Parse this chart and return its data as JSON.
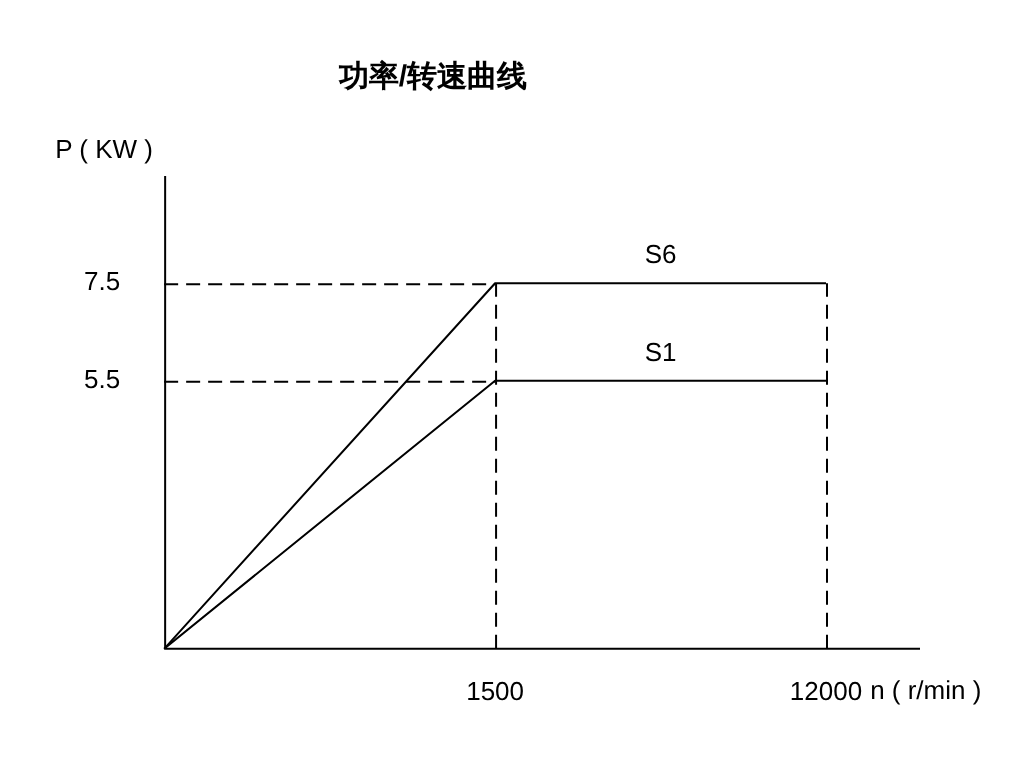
{
  "chart_data": {
    "type": "line",
    "title": "功率/转速曲线",
    "xlabel": "n ( r/min )",
    "ylabel": "P ( KW )",
    "categories": [
      null,
      "1500",
      "12000"
    ],
    "series": [
      {
        "name": "S6",
        "color": "#000000",
        "values": [
          0,
          7.5,
          7.5
        ]
      },
      {
        "name": "S1",
        "color": "#000000",
        "values": [
          0,
          5.5,
          5.5
        ]
      }
    ],
    "ylim": [
      0,
      9.7
    ],
    "yticks": [
      5.5,
      7.5
    ],
    "grid": false,
    "legend": false,
    "marker": "none",
    "line_style": "solid",
    "ref_lines": [
      {
        "axis": "y",
        "value": 7.5,
        "line_style": "dashed"
      },
      {
        "axis": "y",
        "value": 5.5,
        "line_style": "dashed"
      },
      {
        "axis": "x",
        "value": "1500",
        "line_style": "dashed"
      },
      {
        "axis": "x",
        "value": "12000",
        "line_style": "dashed"
      }
    ]
  }
}
